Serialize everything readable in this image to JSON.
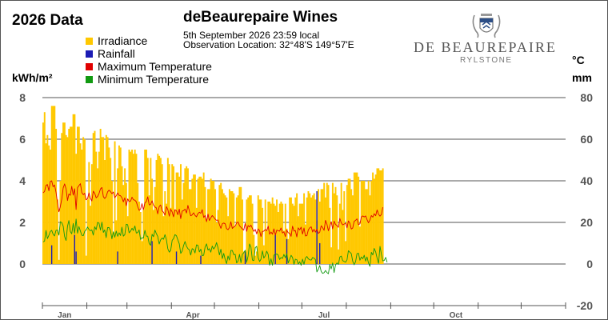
{
  "header": {
    "year_title": "2026 Data",
    "site_name": "deBeaurepaire Wines",
    "observation_date": "5th September 2026  23:59 local",
    "observation_location": "Observation Location:   32°48'S 149°57'E"
  },
  "logo": {
    "wordmark": "de Beaurepaire",
    "subtitle": "RYLSTONE"
  },
  "colors": {
    "irradiance": "#FFC800",
    "rainfall": "#1C1CB4",
    "max_temp": "#E00000",
    "min_temp": "#119A11",
    "grid": "#555555"
  },
  "chart_data": {
    "type": "bar",
    "title": "2026 Data",
    "y_left_label": "kWh/m²",
    "y_right_label_top": "°C",
    "y_right_label_bottom": "mm",
    "y_left_ticks": [
      "8",
      "6",
      "4",
      "2",
      "0"
    ],
    "y_right_ticks": [
      "80",
      "60",
      "40",
      "20",
      "0",
      "-20"
    ],
    "ylim_left": [
      -2,
      8
    ],
    "ylim_right": [
      -20,
      80
    ],
    "x_tick_labels": [
      "Jan",
      "Apr",
      "Jul",
      "Oct"
    ],
    "grid": true,
    "legend": [
      "Irradiance",
      "Rainfall",
      "Maximum Temperature",
      "Minimum Temperature"
    ],
    "series": [
      {
        "name": "Irradiance",
        "type": "bar",
        "axis": "left",
        "unit": "kWh/m²",
        "x_start": "2026-01-01",
        "values": [
          6.8,
          7.3,
          5.8,
          6.2,
          5.7,
          5.5,
          7.6,
          7.6,
          7.6,
          6.5,
          3.1,
          0.2,
          4.0,
          6.3,
          6.8,
          6.8,
          6.2,
          6.1,
          6.5,
          6.6,
          6.6,
          7.2,
          7.2,
          5.3,
          6.6,
          6.6,
          5.8,
          5.5,
          6.1,
          6.0,
          0.4,
          3.1,
          4.9,
          2.8,
          4.8,
          6.3,
          6.4,
          5.4,
          4.6,
          5.4,
          6.5,
          6.1,
          6.1,
          5.0,
          6.2,
          6.1,
          5.6,
          5.1,
          4.0,
          1.5,
          5.9,
          2.1,
          4.6,
          5.7,
          5.6,
          4.7,
          3.8,
          4.6,
          3.9,
          2.3,
          5.5,
          5.4,
          5.5,
          5.3,
          5.5,
          5.3,
          3.9,
          3.0,
          2.5,
          1.1,
          2.6,
          5.5,
          5.5,
          5.1,
          3.3,
          5.1,
          4.1,
          2.6,
          3.7,
          5.0,
          5.3,
          5.2,
          5.1,
          4.8,
          2.3,
          3.5,
          2.9,
          5.1,
          4.8,
          2.7,
          4.8,
          4.7,
          2.6,
          4.4,
          4.4,
          4.2,
          4.8,
          3.1,
          3.9,
          4.6,
          4.7,
          4.6,
          3.6,
          3.6,
          4.1,
          4.3,
          4.3,
          2.7,
          4.1,
          4.2,
          4.2,
          4.1,
          4.4,
          3.7,
          2.1,
          3.6,
          3.6,
          4.1,
          4.0,
          4.0,
          3.6,
          2.0,
          2.6,
          3.8,
          3.9,
          3.6,
          3.4,
          3.3,
          3.2,
          2.3,
          3.6,
          3.5,
          3.5,
          3.4,
          1.8,
          3.2,
          3.3,
          3.7,
          3.7,
          3.1,
          0.6,
          0.4,
          3.1,
          3.2,
          3.3,
          3.3,
          2.9,
          1.4,
          0.4,
          0.6,
          3.3,
          3.1,
          3.1,
          2.7,
          0.9,
          3.1,
          1.6,
          3.0,
          3.0,
          2.9,
          3.2,
          2.9,
          2.8,
          3.1,
          2.5,
          2.9,
          3.0,
          2.9,
          1.6,
          2.9,
          1.7,
          1.2,
          3.2,
          3.2,
          2.9,
          2.8,
          3.2,
          3.4,
          2.3,
          2.9,
          2.9,
          2.9,
          3.4,
          1.9,
          3.2,
          3.5,
          3.4,
          3.2,
          3.3,
          3.4,
          3.1,
          2.1,
          3.6,
          3.0,
          3.6,
          3.6,
          3.9,
          3.2,
          3.9,
          3.8,
          2.7,
          0.8,
          3.9,
          3.4,
          3.7,
          3.3,
          0.7,
          2.9,
          3.9,
          2.6,
          3.5,
          1.1,
          3.8,
          4.1,
          4.1,
          3.6,
          3.3,
          4.4,
          4.4,
          4.4,
          4.2,
          1.8,
          4.0,
          4.0,
          4.0,
          3.6,
          3.6,
          4.0,
          3.3,
          4.0,
          4.4,
          4.1,
          4.3,
          4.6,
          4.6,
          4.5,
          4.5,
          4.6
        ]
      },
      {
        "name": "Rainfall",
        "type": "bar",
        "axis": "right",
        "unit": "mm",
        "x_start": "2026-01-01",
        "values": [
          0,
          0,
          0,
          0,
          0,
          0,
          9,
          0,
          0,
          0,
          0,
          0,
          0,
          0,
          0,
          0,
          0,
          0,
          0,
          0,
          0,
          0,
          14,
          6,
          0,
          0,
          0,
          0,
          0,
          0,
          0,
          0,
          0,
          0,
          0,
          0,
          0,
          0,
          0,
          0,
          0,
          0,
          0,
          0,
          0,
          0,
          0,
          0,
          0,
          0,
          0,
          0,
          6,
          0,
          0,
          0,
          0,
          0,
          0,
          0,
          0,
          0,
          0,
          0,
          0,
          0,
          0,
          0,
          0,
          0,
          0,
          0,
          0,
          0,
          0,
          0,
          11,
          0,
          0,
          0,
          0,
          0,
          0,
          0,
          0,
          0,
          0,
          0,
          0,
          0,
          0,
          0,
          0,
          6,
          0,
          0,
          0,
          0,
          0,
          0,
          0,
          0,
          0,
          0,
          0,
          0,
          0,
          0,
          0,
          0,
          4,
          0,
          0,
          0,
          0,
          0,
          0,
          0,
          0,
          0,
          0,
          0,
          0,
          0,
          0,
          0,
          0,
          0,
          0,
          0,
          0,
          0,
          0,
          0,
          0,
          0,
          0,
          0,
          0,
          0,
          0,
          6,
          0,
          0,
          0,
          0,
          0,
          0,
          0,
          0,
          0,
          0,
          0,
          0,
          0,
          0,
          0,
          0,
          0,
          0,
          0,
          0,
          14,
          0,
          0,
          0,
          0,
          0,
          0,
          0,
          12,
          0,
          0,
          0,
          0,
          0,
          0,
          0,
          0,
          0,
          0,
          0,
          0,
          0,
          0,
          0,
          0,
          0,
          0,
          0,
          0,
          35,
          0,
          10,
          0,
          0,
          0,
          0,
          0,
          0,
          0,
          0,
          0,
          0,
          0,
          0,
          0,
          0,
          0,
          0,
          0,
          0,
          0,
          0,
          0,
          0,
          0,
          0,
          0,
          0,
          0,
          0,
          0,
          0,
          0,
          0,
          0,
          0,
          0,
          0,
          0,
          0,
          0,
          0,
          0,
          0,
          0,
          0,
          0,
          0,
          0,
          0,
          0,
          0,
          0,
          0,
          0,
          0,
          0,
          0,
          0,
          0,
          0,
          0,
          0,
          0,
          0,
          0
        ]
      },
      {
        "name": "Maximum Temperature",
        "type": "line",
        "axis": "right",
        "unit": "°C",
        "x_start": "2026-01-01",
        "values": [
          34.2,
          34.9,
          37.8,
          38.2,
          35.2,
          39.7,
          40.0,
          37.1,
          38.0,
          34.5,
          29.7,
          25.1,
          27.6,
          31.2,
          36.6,
          38.5,
          36.0,
          30.5,
          33.7,
          33.0,
          37.4,
          33.1,
          36.2,
          26.2,
          36.7,
          37.7,
          38.6,
          34.3,
          33.3,
          34.0,
          30.9,
          31.4,
          34.2,
          31.6,
          30.3,
          35.0,
          34.0,
          31.8,
          32.5,
          33.9,
          36.1,
          36.8,
          32.4,
          31.5,
          32.3,
          34.7,
          35.5,
          34.8,
          33.8,
          34.6,
          31.9,
          32.8,
          34.2,
          33.0,
          32.8,
          31.9,
          29.9,
          31.8,
          28.0,
          31.3,
          30.0,
          30.2,
          32.1,
          30.9,
          30.7,
          29.9,
          27.5,
          25.8,
          26.4,
          29.0,
          26.1,
          29.4,
          30.0,
          32.3,
          28.4,
          28.7,
          30.4,
          28.3,
          27.4,
          27.0,
          24.1,
          27.6,
          28.4,
          25.6,
          24.9,
          23.5,
          27.6,
          26.2,
          23.0,
          26.3,
          25.0,
          22.7,
          26.1,
          25.7,
          23.7,
          26.4,
          21.8,
          25.4,
          25.7,
          26.4,
          24.5,
          28.2,
          25.5,
          23.2,
          23.6,
          24.6,
          23.4,
          22.7,
          24.2,
          24.9,
          24.4,
          26.1,
          22.4,
          23.3,
          20.4,
          24.0,
          20.9,
          22.2,
          23.3,
          22.5,
          21.6,
          21.0,
          21.2,
          19.0,
          17.1,
          19.4,
          19.7,
          19.3,
          17.0,
          16.5,
          17.5,
          20.3,
          17.1,
          17.8,
          18.2,
          19.8,
          20.2,
          18.4,
          17.6,
          16.8,
          16.3,
          19.5,
          15.7,
          18.5,
          17.8,
          18.7,
          17.1,
          15.7,
          16.6,
          14.5,
          16.9,
          16.0,
          13.2,
          15.6,
          15.8,
          16.6,
          16.0,
          18.2,
          14.3,
          15.4,
          14.3,
          16.9,
          13.9,
          16.3,
          16.0,
          15.8,
          17.3,
          14.9,
          15.5,
          13.2,
          16.4,
          15.0,
          14.8,
          13.3,
          18.2,
          15.8,
          16.1,
          13.0,
          17.4,
          16.4,
          17.7,
          14.4,
          17.3,
          13.5,
          13.6,
          16.4,
          17.4,
          17.9,
          15.4,
          16.7,
          15.3,
          16.7,
          14.7,
          15.3,
          18.4,
          17.5,
          16.2,
          21.0,
          19.1,
          16.0,
          18.1,
          20.3,
          16.9,
          20.6,
          19.0,
          18.5,
          17.6,
          21.9,
          19.8,
          18.8,
          19.2,
          19.6,
          17.4,
          20.7,
          19.6,
          16.8,
          17.3,
          20.5,
          21.0,
          21.7,
          18.9,
          19.3,
          22.6,
          23.1,
          22.6,
          23.1,
          21.4,
          19.8,
          21.1,
          23.3,
          22.5,
          24.2,
          23.2,
          26.0,
          23.9,
          23.0,
          23.8,
          27.3
        ]
      },
      {
        "name": "Minimum Temperature",
        "type": "line",
        "axis": "right",
        "unit": "°C",
        "x_start": "2026-01-01",
        "values": [
          10.6,
          11.0,
          16.1,
          12.2,
          13.8,
          15.6,
          16.2,
          14.3,
          13.5,
          16.2,
          16.3,
          13.9,
          20.3,
          19.9,
          18.2,
          13.1,
          11.3,
          18.2,
          20.9,
          15.6,
          14.5,
          19.5,
          14.8,
          21.6,
          14.8,
          18.0,
          15.8,
          13.8,
          13.6,
          15.7,
          16.4,
          17.8,
          16.6,
          16.0,
          16.4,
          13.9,
          17.9,
          16.5,
          20.0,
          19.6,
          16.3,
          20.1,
          15.2,
          16.4,
          12.7,
          17.5,
          17.5,
          16.0,
          12.1,
          15.5,
          12.9,
          15.8,
          13.3,
          15.0,
          13.7,
          17.7,
          13.4,
          14.1,
          19.1,
          18.9,
          15.0,
          15.8,
          17.2,
          16.1,
          18.3,
          14.9,
          15.1,
          16.4,
          11.8,
          12.6,
          12.5,
          16.2,
          13.4,
          13.4,
          9.8,
          9.0,
          14.3,
          13.1,
          16.3,
          14.6,
          13.3,
          9.6,
          11.6,
          12.5,
          11.9,
          14.1,
          11.7,
          7.3,
          5.7,
          6.6,
          11.4,
          12.2,
          14.1,
          13.6,
          11.7,
          9.7,
          5.1,
          6.2,
          8.9,
          10.8,
          8.5,
          7.4,
          6.8,
          4.3,
          7.4,
          7.0,
          5.3,
          9.2,
          9.0,
          5.8,
          7.1,
          4.0,
          4.2,
          8.2,
          9.7,
          6.7,
          7.4,
          5.7,
          8.6,
          7.2,
          8.2,
          10.3,
          7.8,
          4.4,
          7.1,
          2.6,
          5.1,
          2.1,
          0.2,
          3.9,
          1.9,
          6.5,
          6.5,
          4.5,
          4.6,
          0.5,
          1.5,
          4.6,
          0.6,
          4.7,
          5.4,
          6.6,
          0.8,
          3.8,
          9.6,
          8.1,
          1.9,
          1.6,
          7.9,
          8.5,
          3.0,
          1.2,
          2.3,
          6.3,
          2.8,
          4.0,
          6.2,
          4.7,
          -0.6,
          2.5,
          -0.6,
          4.3,
          4.5,
          4.8,
          4.3,
          2.2,
          3.1,
          2.7,
          4.6,
          3.0,
          5.0,
          0.5,
          2.3,
          4.2,
          3.1,
          -0.2,
          2.3,
          2.1,
          -0.1,
          1.1,
          -0.6,
          2.3,
          -0.2,
          2.9,
          3.6,
          2.5,
          2.0,
          1.9,
          3.1,
          2.8,
          2.1,
          -3.8,
          -2.5,
          -0.7,
          -3.6,
          -4.5,
          -4.2,
          -3.1,
          -4.1,
          -4.7,
          -0.3,
          -2.4,
          0.5,
          -4.1,
          -0.5,
          0.5,
          -0.2,
          3.4,
          3.8,
          1.6,
          1.2,
          0.9,
          2.0,
          6.4,
          5.7,
          5.0,
          1.3,
          -0.4,
          1.2,
          5.0,
          5.2,
          1.8,
          3.4,
          2.5,
          4.2,
          1.4,
          3.4,
          0.5,
          -1.1,
          5.6,
          4.4,
          7.5,
          5.8,
          2.8,
          0.3,
          8.5,
          4.6,
          1.5,
          1.7,
          3.2,
          0.8
        ]
      }
    ]
  }
}
